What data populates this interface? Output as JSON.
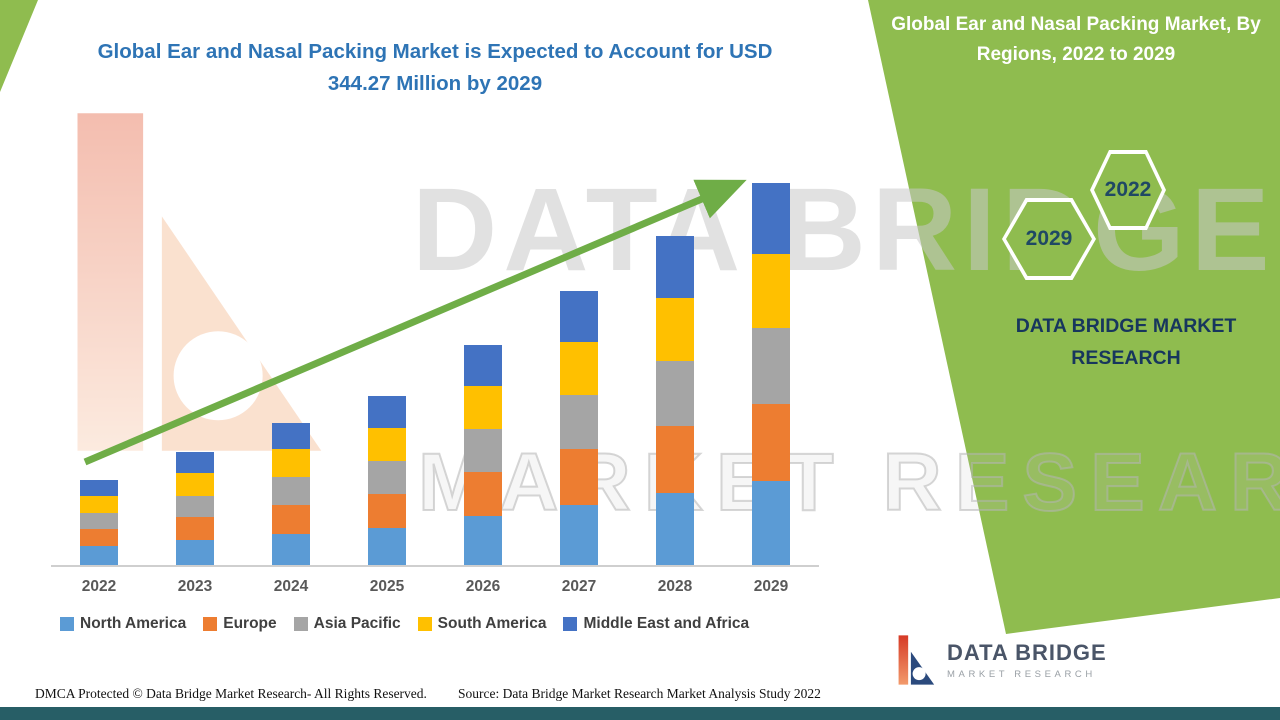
{
  "title": {
    "main": "Global Ear and Nasal Packing Market is Expected to Account for USD 344.27 Million by 2029"
  },
  "panel": {
    "title": "Global Ear and Nasal Packing Market, By Regions, 2022 to 2029",
    "hexagons": {
      "left_year": "2029",
      "right_year": "2022"
    },
    "brand": "DATA BRIDGE MARKET RESEARCH"
  },
  "watermark": {
    "line1": "DATA BRIDGE",
    "line2": "MARKET RESEARCH"
  },
  "footer": {
    "dmca": "DMCA Protected © Data Bridge Market Research- All Rights Reserved.",
    "source": "Source: Data Bridge Market Research Market Analysis Study 2022",
    "logo": {
      "name": "DATA BRIDGE",
      "subtitle": "MARKET RESEARCH"
    }
  },
  "colors": {
    "panel_green": "#8FBC4F",
    "arrow_green": "#6FAD47",
    "title_blue": "#2E74B5",
    "brand_navy": "#17365D",
    "bottom_bar_teal": "#275E66"
  },
  "chart_data": {
    "type": "bar",
    "stacked": true,
    "title": "Global Ear and Nasal Packing Market, By Regions, 2022 to 2029",
    "unit": "USD Million",
    "xlabel": "",
    "ylabel": "",
    "y_axis_shown": false,
    "grid": false,
    "legend_position": "bottom",
    "categories": [
      "2022",
      "2023",
      "2024",
      "2025",
      "2026",
      "2027",
      "2028",
      "2029"
    ],
    "series": [
      {
        "name": "North America",
        "color": "#5B9BD5",
        "values": [
          17.0,
          22.5,
          28.0,
          33.5,
          44.0,
          54.5,
          65.0,
          75.3
        ]
      },
      {
        "name": "Europe",
        "color": "#ED7D31",
        "values": [
          15.5,
          20.5,
          26.0,
          30.5,
          40.0,
          50.0,
          60.0,
          70.0
        ]
      },
      {
        "name": "Asia Pacific",
        "color": "#A5A5A5",
        "values": [
          14.5,
          19.5,
          25.0,
          30.0,
          39.0,
          48.5,
          58.5,
          68.0
        ]
      },
      {
        "name": "South America",
        "color": "#FFC000",
        "values": [
          15.0,
          20.0,
          25.0,
          29.5,
          38.5,
          48.0,
          57.5,
          66.5
        ]
      },
      {
        "name": "Middle East and Africa",
        "color": "#4472C4",
        "values": [
          14.5,
          19.5,
          24.0,
          28.5,
          36.5,
          46.0,
          55.0,
          64.47
        ]
      }
    ],
    "estimated_totals": [
      76.5,
      102,
      128,
      152,
      198,
      247,
      296,
      344.27
    ],
    "ylim": [
      0,
      360
    ],
    "annotations": [
      "upward green trend arrow across bars",
      "2029 total labeled as USD 344.27 Million in title; other values estimated from bar heights"
    ]
  }
}
